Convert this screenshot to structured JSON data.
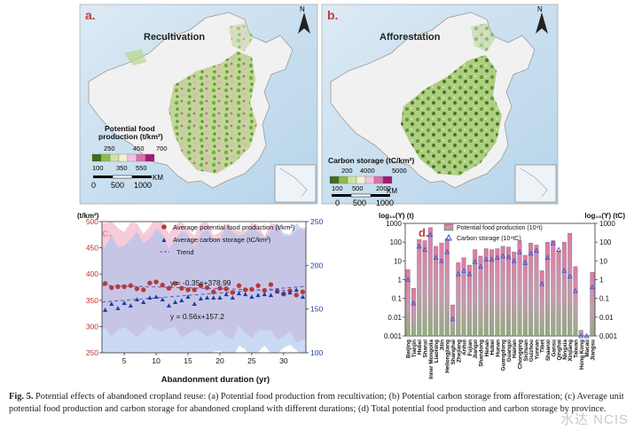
{
  "panels": {
    "a": {
      "letter": "a.",
      "title": "Recultivation",
      "legend_title_1": "Potential food",
      "legend_title_2": "production (t/km²)",
      "legend_top": [
        "250",
        "450",
        "700"
      ],
      "legend_bottom": [
        "100",
        "350",
        "550"
      ],
      "colors": [
        "#3c6e1e",
        "#8dbb4c",
        "#cfe3a0",
        "#f2f0d2",
        "#f3c4dc",
        "#dd6fab",
        "#a61a72"
      ],
      "scale": [
        "0",
        "500",
        "1000"
      ],
      "scale_unit": "KM",
      "north": "N"
    },
    "b": {
      "letter": "b.",
      "title": "Afforestation",
      "legend_title": "Carbon storage (tC/km²)",
      "legend_top": [
        "200",
        "4000",
        "5000"
      ],
      "legend_bottom": [
        "100",
        "500",
        "2000"
      ],
      "colors": [
        "#3c6e1e",
        "#8dbb4c",
        "#cfe3a0",
        "#f2f0d2",
        "#f3c4dc",
        "#dd6fab",
        "#a61a72"
      ],
      "scale": [
        "0",
        "500",
        "1000"
      ],
      "scale_unit": "KM",
      "north": "N"
    }
  },
  "chart_data": [
    {
      "panel": "c.",
      "type": "scatter",
      "left_axis_title": "(t/km²)",
      "xlabel": "Abandonment duration (yr)",
      "x_ticks": [
        5,
        10,
        15,
        20,
        25,
        30
      ],
      "xlim": [
        1.5,
        33.5
      ],
      "y_left_ticks": [
        250,
        300,
        350,
        400,
        450,
        500
      ],
      "y_left_lim": [
        250,
        500
      ],
      "y_right_ticks": [
        100,
        150,
        200,
        250
      ],
      "y_right_lim": [
        100,
        250
      ],
      "legend": [
        "Average potential food production (t/km²)",
        "Average carbon storage (tC/km²)",
        "Trend"
      ],
      "equations": [
        "y = -0.35x+378.99",
        "y = 0.56x+157.2"
      ],
      "food_x": [
        2,
        3,
        4,
        5,
        6,
        7,
        8,
        9,
        10,
        11,
        12,
        13,
        14,
        15,
        16,
        17,
        18,
        19,
        20,
        21,
        22,
        23,
        24,
        25,
        26,
        27,
        28,
        29,
        30,
        31,
        32,
        33
      ],
      "food_y": [
        382,
        374,
        376,
        376,
        378,
        372,
        370,
        383,
        385,
        379,
        373,
        382,
        373,
        370,
        370,
        378,
        374,
        366,
        373,
        372,
        365,
        378,
        370,
        371,
        378,
        369,
        380,
        368,
        362,
        368,
        360,
        366
      ],
      "carbon_x": [
        2,
        3,
        4,
        5,
        6,
        7,
        8,
        9,
        10,
        11,
        12,
        13,
        14,
        15,
        16,
        17,
        18,
        19,
        20,
        21,
        22,
        23,
        24,
        25,
        26,
        27,
        28,
        29,
        30,
        31,
        32,
        33
      ],
      "carbon_y": [
        149,
        156,
        151,
        157,
        154,
        161,
        158,
        163,
        164,
        161,
        154,
        158,
        160,
        164,
        156,
        162,
        163,
        163,
        163,
        167,
        163,
        168,
        167,
        164,
        166,
        167,
        166,
        170,
        168,
        169,
        172,
        164
      ],
      "food_trend": {
        "slope": -0.35,
        "intercept": 378.99
      },
      "carbon_trend": {
        "slope": 0.56,
        "intercept": 157.2
      },
      "colors": {
        "food": "#b53a3a",
        "carbon": "#1a3fa8",
        "pink_band": "#f3b9cf",
        "blue_band": "#a9c2ec",
        "left_axis": "#c03030",
        "right_axis": "#2040b0"
      }
    },
    {
      "panel": "d.",
      "type": "bar",
      "left_axis_title": "log₁₀(Y) (t)",
      "right_axis_title": "log₁₀(Y) (tC)",
      "legend": [
        "Potential food production (10⁴t)",
        "Carbon storage (10⁴tC)"
      ],
      "y_ticks": [
        "0.001",
        "0.01",
        "0.1",
        "1",
        "10",
        "100",
        "1000"
      ],
      "ylim_log10": [
        -3,
        3
      ],
      "categories": [
        "Beijing",
        "Tianjin",
        "Hebei",
        "Shanxi",
        "Inner Mongolia",
        "Liaoning",
        "Jilin",
        "Heilongjiang",
        "Shanghai",
        "Zhejiang",
        "Anhui",
        "Fujian",
        "Jiangxi",
        "Shandong",
        "Henan",
        "Hubei",
        "Hunan",
        "Guangdong",
        "Guangxi",
        "Hainan",
        "Chongqing",
        "Sichuan",
        "Guizhou",
        "Yunnan",
        "Tibet",
        "Shaanxi",
        "Gansu",
        "Qinghai",
        "Ningxia",
        "Xinjiang",
        "Taiwan",
        "Hong Kong",
        "Macau",
        "Jiangsu"
      ],
      "food": [
        3.5,
        0.35,
        140,
        120,
        600,
        60,
        90,
        150,
        0.045,
        8,
        15,
        6,
        40,
        18,
        45,
        40,
        45,
        60,
        55,
        30,
        120,
        20,
        90,
        70,
        3,
        100,
        120,
        30,
        100,
        300,
        5,
        0.002,
        0.001,
        2.5
      ],
      "carbon": [
        1.0,
        0.055,
        60,
        40,
        250,
        15,
        10,
        30,
        0.008,
        2,
        3,
        2,
        9,
        5,
        12,
        12,
        15,
        18,
        16,
        10,
        30,
        8,
        25,
        35,
        0.6,
        15,
        90,
        40,
        3,
        1.5,
        0.25,
        0.001,
        0.001,
        0.4
      ],
      "colors": {
        "bar_top": "#e07aa8",
        "bar_bottom": "#8fae7c",
        "marker": "#3a55c8"
      }
    }
  ],
  "caption": {
    "label": "Fig. 5.",
    "text": " Potential effects of abandoned cropland reuse: (a) Potential food production from recultivation; (b) Potential carbon storage from afforestation; (c) Average unit potential food production and carbon storage for abandoned cropland with different durations; (d) Total potential food production and carbon storage by province."
  },
  "watermark": "水达 NCIS"
}
